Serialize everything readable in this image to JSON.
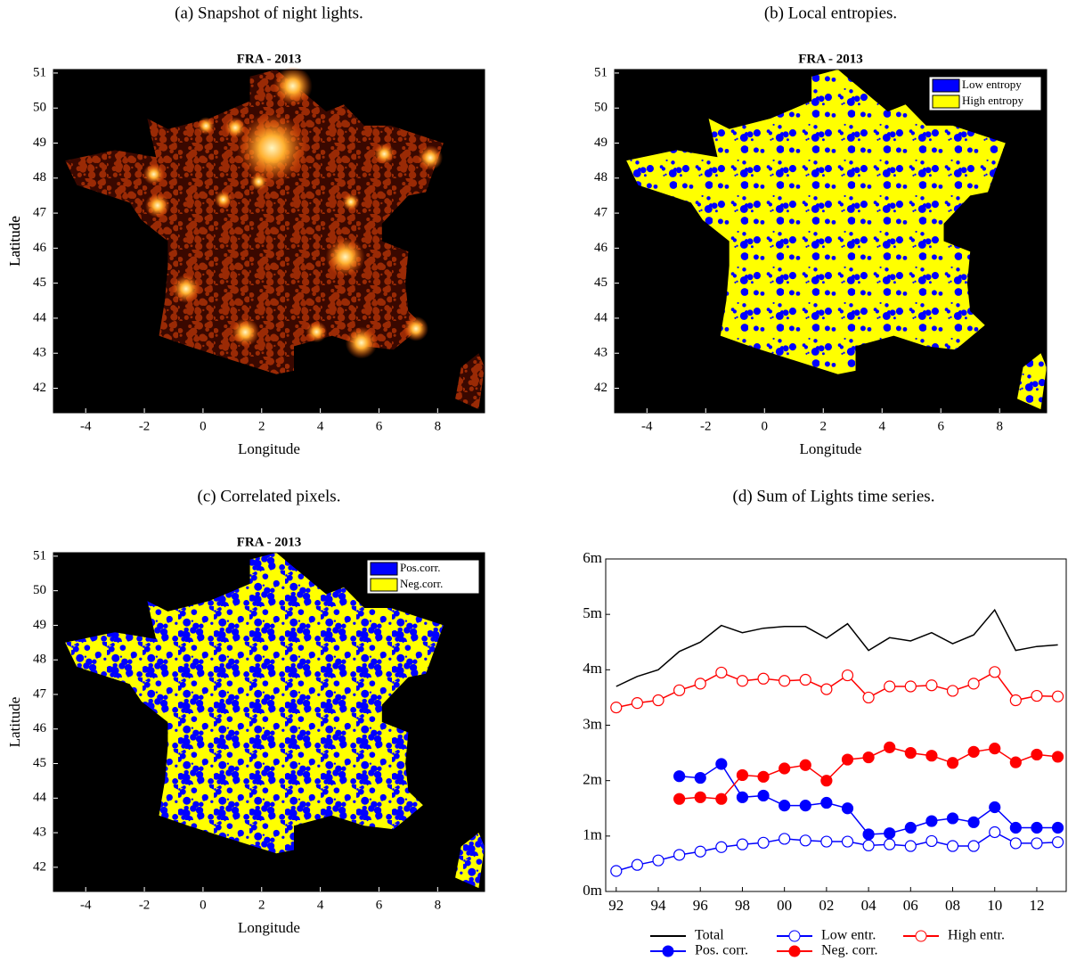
{
  "chart_data": [
    {
      "type": "map",
      "caption": "(a) Snapshot of night lights.",
      "title": "FRA - 2013",
      "x_label": "Longitude",
      "y_label": "Latitude",
      "xlim": [
        -5.1,
        9.6
      ],
      "ylim": [
        41.3,
        51.1
      ],
      "xticks": [
        -4,
        -2,
        0,
        2,
        4,
        6,
        8
      ],
      "yticks": [
        42,
        43,
        44,
        45,
        46,
        47,
        48,
        49,
        50,
        51
      ]
    },
    {
      "type": "map",
      "caption": "(b) Local entropies.",
      "title": "FRA - 2013",
      "x_label": "Longitude",
      "y_label": "Latitude",
      "xlim": [
        -5.1,
        9.6
      ],
      "ylim": [
        41.3,
        51.1
      ],
      "xticks": [
        -4,
        -2,
        0,
        2,
        4,
        6,
        8
      ],
      "yticks": [
        42,
        43,
        44,
        45,
        46,
        47,
        48,
        49,
        50,
        51
      ],
      "legend": [
        {
          "name": "Low entropy",
          "color": "#0000ff"
        },
        {
          "name": "High entropy",
          "color": "#ffff00"
        }
      ]
    },
    {
      "type": "map",
      "caption": "(c) Correlated pixels.",
      "title": "FRA - 2013",
      "x_label": "Longitude",
      "y_label": "Latitude",
      "xlim": [
        -5.1,
        9.6
      ],
      "ylim": [
        41.3,
        51.1
      ],
      "xticks": [
        -4,
        -2,
        0,
        2,
        4,
        6,
        8
      ],
      "yticks": [
        42,
        43,
        44,
        45,
        46,
        47,
        48,
        49,
        50,
        51
      ],
      "legend": [
        {
          "name": "Pos.corr.",
          "color": "#0000ff"
        },
        {
          "name": "Neg.corr.",
          "color": "#ffff00"
        }
      ]
    },
    {
      "type": "line",
      "caption": "(d) Sum of Lights time series.",
      "x": [
        1992,
        1993,
        1994,
        1995,
        1996,
        1997,
        1998,
        1999,
        2000,
        2001,
        2002,
        2003,
        2004,
        2005,
        2006,
        2007,
        2008,
        2009,
        2010,
        2011,
        2012,
        2013
      ],
      "xlim": [
        1991.5,
        2013.4
      ],
      "xticks": [
        {
          "value": 1992,
          "label": "92"
        },
        {
          "value": 1994,
          "label": "94"
        },
        {
          "value": 1996,
          "label": "96"
        },
        {
          "value": 1998,
          "label": "98"
        },
        {
          "value": 2000,
          "label": "00"
        },
        {
          "value": 2002,
          "label": "02"
        },
        {
          "value": 2004,
          "label": "04"
        },
        {
          "value": 2006,
          "label": "06"
        },
        {
          "value": 2008,
          "label": "08"
        },
        {
          "value": 2010,
          "label": "10"
        },
        {
          "value": 2012,
          "label": "12"
        }
      ],
      "ylim": [
        0,
        6
      ],
      "yticks": [
        {
          "value": 0,
          "label": "0m"
        },
        {
          "value": 1,
          "label": "1m"
        },
        {
          "value": 2,
          "label": "2m"
        },
        {
          "value": 3,
          "label": "3m"
        },
        {
          "value": 4,
          "label": "4m"
        },
        {
          "value": 5,
          "label": "5m"
        },
        {
          "value": 6,
          "label": "6m"
        }
      ],
      "series": [
        {
          "name": "Total",
          "color": "#000000",
          "marker": "none",
          "values": [
            3.7,
            3.88,
            4.0,
            4.33,
            4.5,
            4.8,
            4.67,
            4.75,
            4.78,
            4.78,
            4.57,
            4.83,
            4.35,
            4.58,
            4.52,
            4.67,
            4.47,
            4.63,
            5.08,
            4.35,
            4.42,
            4.45
          ]
        },
        {
          "name": "Low entr.",
          "color": "#0000ff",
          "marker": "open",
          "values": [
            0.37,
            0.48,
            0.56,
            0.66,
            0.72,
            0.8,
            0.85,
            0.88,
            0.95,
            0.92,
            0.9,
            0.9,
            0.83,
            0.85,
            0.82,
            0.91,
            0.82,
            0.82,
            1.07,
            0.87,
            0.87,
            0.89
          ]
        },
        {
          "name": "High entr.",
          "color": "#ff0000",
          "marker": "open",
          "values": [
            3.32,
            3.4,
            3.45,
            3.63,
            3.75,
            3.95,
            3.8,
            3.84,
            3.8,
            3.82,
            3.65,
            3.9,
            3.5,
            3.7,
            3.7,
            3.72,
            3.62,
            3.75,
            3.96,
            3.45,
            3.53,
            3.52
          ]
        },
        {
          "name": "Pos. corr.",
          "color": "#0000ff",
          "marker": "filled",
          "values": [
            null,
            null,
            null,
            2.08,
            2.05,
            2.3,
            1.7,
            1.73,
            1.55,
            1.55,
            1.6,
            1.5,
            1.03,
            1.05,
            1.15,
            1.27,
            1.32,
            1.25,
            1.52,
            1.15,
            1.15,
            1.15
          ]
        },
        {
          "name": "Neg. corr.",
          "color": "#ff0000",
          "marker": "filled",
          "values": [
            null,
            null,
            null,
            1.67,
            1.7,
            1.67,
            2.1,
            2.07,
            2.22,
            2.28,
            2.0,
            2.38,
            2.42,
            2.6,
            2.5,
            2.45,
            2.32,
            2.52,
            2.58,
            2.33,
            2.47,
            2.43
          ]
        }
      ]
    }
  ]
}
